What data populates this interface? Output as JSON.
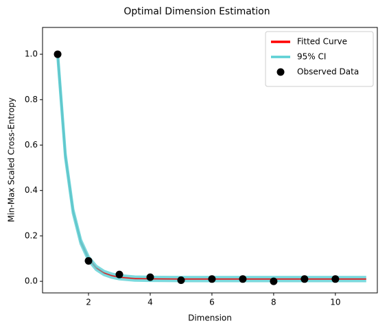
{
  "chart_data": {
    "type": "line",
    "title": "Optimal Dimension Estimation",
    "x_label": "Dimension",
    "y_label": "Min-Max Scaled Cross-Entropy",
    "xlim": [
      0.51,
      11.36
    ],
    "ylim": [
      -0.051,
      1.118
    ],
    "xticks": [
      2,
      4,
      6,
      8,
      10
    ],
    "yticks": [
      {
        "value": 0,
        "label": "0.0"
      },
      0.2,
      0.4,
      0.6,
      0.8,
      {
        "value": 1,
        "label": "1.0"
      }
    ],
    "legend": "upper right",
    "series": [
      {
        "name": "Fitted Curve",
        "color": "#ff0000",
        "kind": "line",
        "x": [
          1,
          1.25,
          1.5,
          1.75,
          2,
          2.25,
          2.5,
          2.75,
          3,
          3.5,
          4,
          5,
          6,
          7,
          8,
          9,
          10,
          11
        ],
        "values": [
          1.0,
          0.553,
          0.308,
          0.174,
          0.1,
          0.059,
          0.037,
          0.025,
          0.018,
          0.012,
          0.011,
          0.01,
          0.01,
          0.01,
          0.01,
          0.01,
          0.01,
          0.01
        ]
      },
      {
        "name": "95% CI",
        "color": "#5bcfd4",
        "kind": "band",
        "x": [
          1,
          1.25,
          1.5,
          1.75,
          2,
          2.25,
          2.5,
          2.75,
          3,
          3.5,
          4,
          5,
          6,
          7,
          8,
          9,
          10,
          11
        ],
        "lower": [
          0.992,
          0.545,
          0.3,
          0.166,
          0.092,
          0.051,
          0.029,
          0.017,
          0.01,
          0.004,
          0.003,
          0.002,
          0.002,
          0.002,
          0.002,
          0.002,
          0.002,
          0.002
        ],
        "upper": [
          1.008,
          0.561,
          0.316,
          0.182,
          0.108,
          0.067,
          0.045,
          0.033,
          0.026,
          0.02,
          0.019,
          0.018,
          0.018,
          0.018,
          0.018,
          0.018,
          0.018,
          0.018
        ]
      },
      {
        "name": "Observed Data",
        "color": "#000000",
        "kind": "scatter",
        "x": [
          1,
          2,
          3,
          4,
          5,
          6,
          7,
          8,
          9,
          10
        ],
        "values": [
          1.0,
          0.09,
          0.03,
          0.018,
          0.005,
          0.01,
          0.01,
          0.0,
          0.01,
          0.01
        ]
      }
    ]
  }
}
